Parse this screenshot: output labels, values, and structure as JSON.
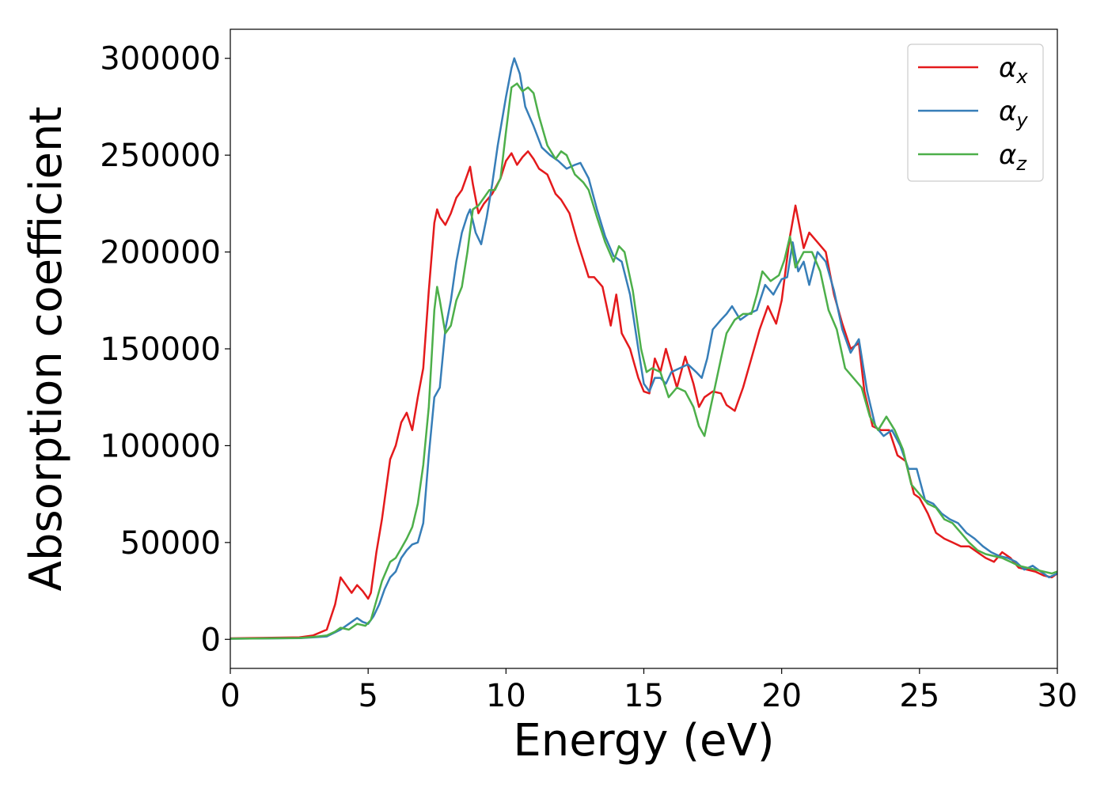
{
  "chart_data": {
    "type": "line",
    "xlabel": "Energy (eV)",
    "ylabel": "Absorption coefficient",
    "xlim": [
      0,
      30
    ],
    "ylim": [
      -15000,
      315000
    ],
    "xticks": [
      "0",
      "5",
      "10",
      "15",
      "20",
      "25",
      "30"
    ],
    "yticks": [
      "0",
      "50000",
      "100000",
      "150000",
      "200000",
      "250000",
      "300000"
    ],
    "grid": false,
    "legend_position": "top-right",
    "series": [
      {
        "name": "αx",
        "name_base": "α",
        "name_sub": "x",
        "color": "#e41a1c",
        "x": [
          0,
          2.5,
          3.0,
          3.5,
          3.8,
          4.0,
          4.2,
          4.4,
          4.6,
          4.8,
          5.0,
          5.1,
          5.3,
          5.5,
          5.8,
          6.0,
          6.2,
          6.4,
          6.6,
          6.8,
          7.0,
          7.2,
          7.4,
          7.5,
          7.6,
          7.8,
          8.0,
          8.2,
          8.4,
          8.6,
          8.7,
          8.8,
          9.0,
          9.2,
          9.5,
          9.8,
          10.0,
          10.2,
          10.4,
          10.6,
          10.8,
          11.0,
          11.2,
          11.5,
          11.8,
          12.0,
          12.3,
          12.6,
          12.8,
          13.0,
          13.2,
          13.5,
          13.8,
          14.0,
          14.2,
          14.5,
          14.8,
          15.0,
          15.2,
          15.4,
          15.6,
          15.8,
          16.0,
          16.2,
          16.5,
          16.8,
          17.0,
          17.2,
          17.5,
          17.8,
          18.0,
          18.3,
          18.6,
          18.9,
          19.2,
          19.5,
          19.8,
          20.0,
          20.3,
          20.5,
          20.8,
          21.0,
          21.3,
          21.6,
          21.9,
          22.2,
          22.5,
          22.8,
          23.0,
          23.3,
          23.6,
          23.9,
          24.2,
          24.5,
          24.8,
          25.0,
          25.3,
          25.6,
          25.9,
          26.2,
          26.5,
          26.8,
          27.1,
          27.4,
          27.7,
          28.0,
          28.3,
          28.6,
          28.9,
          29.2,
          29.5,
          29.8,
          30.0
        ],
        "values": [
          500,
          1000,
          2000,
          5000,
          18000,
          32000,
          28000,
          24000,
          28000,
          25000,
          21000,
          24000,
          45000,
          62000,
          93000,
          100000,
          112000,
          117000,
          108000,
          125000,
          140000,
          180000,
          215000,
          222000,
          218000,
          214000,
          220000,
          228000,
          232000,
          240000,
          244000,
          235000,
          220000,
          225000,
          230000,
          238000,
          247000,
          251000,
          245000,
          249000,
          252000,
          248000,
          243000,
          240000,
          230000,
          227000,
          220000,
          205000,
          196000,
          187000,
          187000,
          182000,
          162000,
          178000,
          158000,
          150000,
          135000,
          128000,
          127000,
          145000,
          138000,
          150000,
          140000,
          130000,
          146000,
          132000,
          120000,
          125000,
          128000,
          127000,
          121000,
          118000,
          130000,
          145000,
          160000,
          172000,
          163000,
          175000,
          208000,
          224000,
          202000,
          210000,
          205000,
          200000,
          178000,
          163000,
          150000,
          153000,
          128000,
          110000,
          108000,
          108000,
          95000,
          92000,
          75000,
          73000,
          65000,
          55000,
          52000,
          50000,
          48000,
          48000,
          45000,
          42000,
          40000,
          45000,
          42000,
          37000,
          36000,
          35000,
          33000,
          32000,
          34000
        ]
      },
      {
        "name": "αy",
        "name_base": "α",
        "name_sub": "y",
        "color": "#377eb8",
        "x": [
          0,
          2.5,
          3.0,
          3.5,
          4.0,
          4.3,
          4.6,
          4.8,
          5.0,
          5.2,
          5.4,
          5.6,
          5.8,
          6.0,
          6.2,
          6.4,
          6.6,
          6.8,
          7.0,
          7.2,
          7.4,
          7.6,
          7.8,
          8.0,
          8.2,
          8.4,
          8.6,
          8.7,
          8.9,
          9.1,
          9.3,
          9.5,
          9.7,
          10.0,
          10.2,
          10.3,
          10.5,
          10.7,
          11.0,
          11.3,
          11.6,
          11.9,
          12.2,
          12.5,
          12.7,
          13.0,
          13.3,
          13.6,
          13.9,
          14.2,
          14.5,
          14.8,
          15.0,
          15.2,
          15.4,
          15.6,
          15.8,
          16.0,
          16.3,
          16.6,
          16.9,
          17.1,
          17.3,
          17.5,
          17.8,
          18.0,
          18.2,
          18.5,
          18.8,
          19.1,
          19.4,
          19.7,
          20.0,
          20.2,
          20.4,
          20.6,
          20.8,
          21.0,
          21.3,
          21.6,
          21.9,
          22.2,
          22.5,
          22.8,
          23.1,
          23.4,
          23.7,
          24.0,
          24.3,
          24.6,
          24.9,
          25.2,
          25.5,
          25.8,
          26.1,
          26.4,
          26.7,
          27.0,
          27.3,
          27.6,
          27.9,
          28.2,
          28.5,
          28.8,
          29.1,
          29.4,
          29.7,
          30.0
        ],
        "values": [
          300,
          600,
          1000,
          1500,
          5000,
          8000,
          11000,
          9000,
          8000,
          12000,
          18000,
          26000,
          32000,
          35000,
          42000,
          46000,
          49000,
          50000,
          60000,
          95000,
          125000,
          130000,
          160000,
          175000,
          195000,
          210000,
          219000,
          222000,
          210000,
          204000,
          218000,
          235000,
          255000,
          280000,
          295000,
          300000,
          292000,
          275000,
          265000,
          254000,
          250000,
          247000,
          243000,
          245000,
          246000,
          238000,
          222000,
          208000,
          198000,
          195000,
          178000,
          150000,
          132000,
          128000,
          135000,
          135000,
          132000,
          138000,
          140000,
          142000,
          138000,
          135000,
          145000,
          160000,
          165000,
          168000,
          172000,
          165000,
          168000,
          170000,
          183000,
          178000,
          186000,
          187000,
          205000,
          190000,
          195000,
          183000,
          200000,
          195000,
          180000,
          160000,
          148000,
          155000,
          128000,
          110000,
          105000,
          108000,
          100000,
          88000,
          88000,
          72000,
          70000,
          65000,
          62000,
          60000,
          55000,
          52000,
          48000,
          45000,
          43000,
          42000,
          40000,
          36000,
          38000,
          35000,
          32000,
          34000
        ]
      },
      {
        "name": "αz",
        "name_base": "α",
        "name_sub": "z",
        "color": "#4daf4a",
        "x": [
          0,
          2.5,
          3.0,
          3.5,
          3.8,
          4.0,
          4.3,
          4.6,
          4.9,
          5.1,
          5.3,
          5.5,
          5.8,
          6.0,
          6.2,
          6.4,
          6.6,
          6.8,
          7.0,
          7.2,
          7.4,
          7.5,
          7.6,
          7.8,
          8.0,
          8.2,
          8.4,
          8.6,
          8.8,
          9.0,
          9.2,
          9.4,
          9.6,
          9.8,
          10.0,
          10.2,
          10.4,
          10.6,
          10.8,
          11.0,
          11.2,
          11.5,
          11.8,
          12.0,
          12.2,
          12.5,
          12.8,
          13.0,
          13.3,
          13.6,
          13.9,
          14.1,
          14.3,
          14.6,
          14.9,
          15.1,
          15.3,
          15.6,
          15.9,
          16.2,
          16.5,
          16.8,
          17.0,
          17.2,
          17.5,
          17.8,
          18.0,
          18.3,
          18.6,
          18.9,
          19.1,
          19.3,
          19.6,
          19.9,
          20.1,
          20.3,
          20.5,
          20.8,
          21.1,
          21.4,
          21.7,
          22.0,
          22.3,
          22.6,
          22.9,
          23.2,
          23.5,
          23.8,
          24.1,
          24.4,
          24.7,
          25.0,
          25.3,
          25.6,
          25.9,
          26.2,
          26.5,
          26.8,
          27.1,
          27.4,
          27.7,
          28.0,
          28.3,
          28.6,
          28.9,
          29.2,
          29.5,
          29.8,
          30.0
        ],
        "values": [
          300,
          700,
          1200,
          2000,
          4000,
          6000,
          5000,
          8000,
          7000,
          10000,
          20000,
          30000,
          40000,
          42000,
          47000,
          52000,
          58000,
          70000,
          90000,
          120000,
          170000,
          182000,
          175000,
          158000,
          162000,
          175000,
          182000,
          200000,
          222000,
          224000,
          228000,
          232000,
          232000,
          238000,
          262000,
          285000,
          287000,
          283000,
          285000,
          282000,
          270000,
          255000,
          248000,
          252000,
          250000,
          240000,
          236000,
          232000,
          218000,
          205000,
          195000,
          203000,
          200000,
          180000,
          150000,
          138000,
          140000,
          138000,
          125000,
          130000,
          128000,
          120000,
          110000,
          105000,
          125000,
          145000,
          158000,
          165000,
          168000,
          168000,
          178000,
          190000,
          185000,
          188000,
          196000,
          208000,
          192000,
          200000,
          200000,
          190000,
          170000,
          160000,
          140000,
          135000,
          130000,
          115000,
          108000,
          115000,
          108000,
          98000,
          80000,
          75000,
          70000,
          68000,
          62000,
          60000,
          55000,
          50000,
          46000,
          44000,
          43000,
          42000,
          40000,
          38000,
          37000,
          36000,
          35000,
          34000,
          35000
        ]
      }
    ]
  }
}
